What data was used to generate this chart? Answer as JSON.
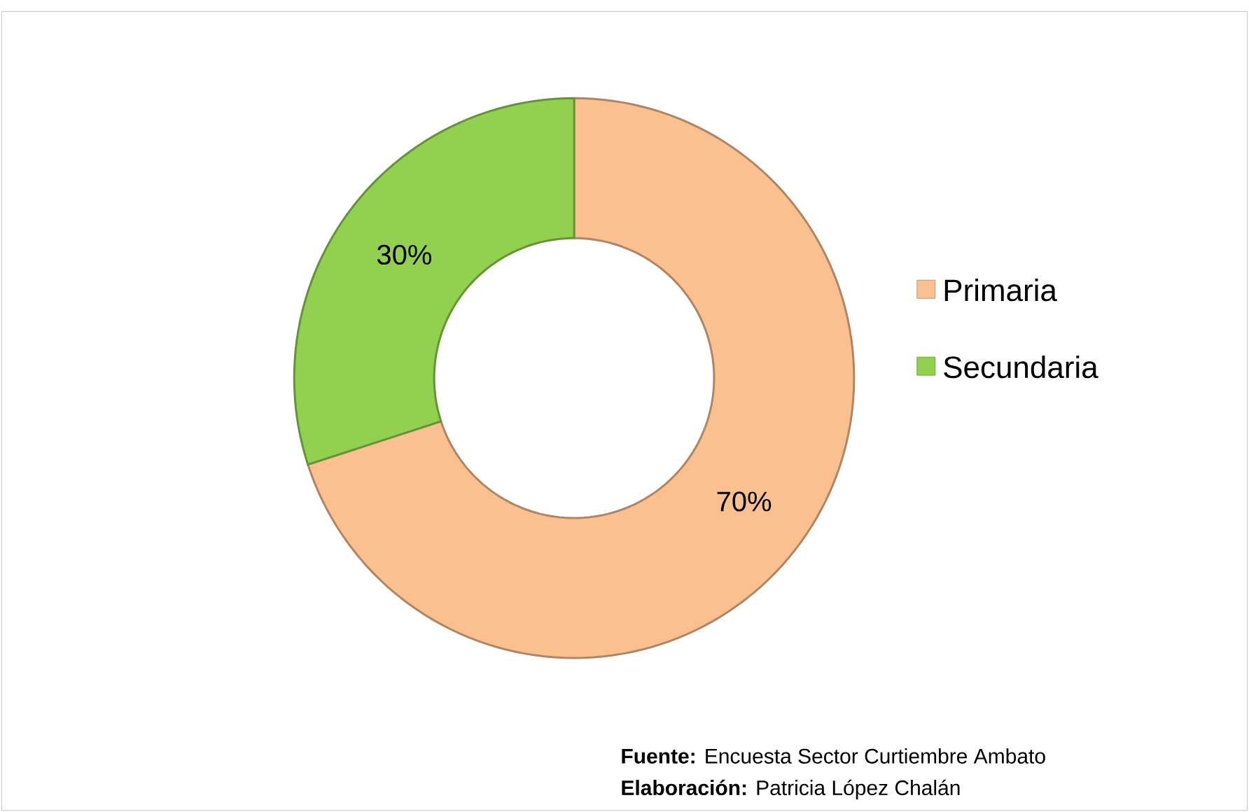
{
  "chart_data": {
    "type": "donut",
    "categories": [
      "Primaria",
      "Secundaria"
    ],
    "values": [
      70,
      30
    ],
    "colors": [
      "#fac090",
      "#92d050"
    ],
    "value_labels": [
      "70%",
      "30%"
    ],
    "legend": "right",
    "annotations": [
      "**Fuente:** Encuesta Sector Curtiembre Ambato",
      "**Elaboración:** Patricia López Chalán"
    ]
  }
}
